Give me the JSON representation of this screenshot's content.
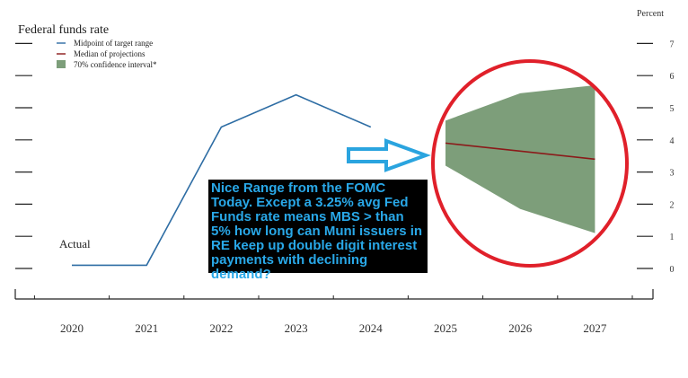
{
  "chart_data": {
    "type": "line",
    "title": "Federal funds rate",
    "ylabel": "Percent",
    "ylim": [
      0,
      7
    ],
    "y_ticks": [
      "0",
      "1",
      "2",
      "3",
      "4",
      "5",
      "6",
      "7"
    ],
    "categories": [
      "2020",
      "2021",
      "2022",
      "2023",
      "2024",
      "2025",
      "2026",
      "2027"
    ],
    "legend": {
      "placement": "top-left",
      "entries": [
        {
          "label": "Midpoint of target range",
          "color": "#2e6da4",
          "kind": "line"
        },
        {
          "label": "Median of projections",
          "color": "#8b1a1a",
          "kind": "line"
        },
        {
          "label": "70% confidence interval*",
          "color": "#7d9e7a",
          "kind": "area"
        }
      ]
    },
    "series": [
      {
        "name": "Midpoint of target range",
        "x": [
          2020,
          2021,
          2022,
          2023,
          2024
        ],
        "values": [
          0.1,
          0.1,
          4.4,
          5.4,
          4.4
        ]
      },
      {
        "name": "Median of projections",
        "x": [
          2025,
          2026,
          2027
        ],
        "values": [
          3.9,
          3.65,
          3.4
        ]
      }
    ],
    "band": {
      "name": "70% confidence interval*",
      "x": [
        2025,
        2026,
        2027
      ],
      "upper": [
        4.6,
        5.45,
        5.7
      ],
      "lower": [
        3.2,
        1.85,
        1.1
      ]
    },
    "annotation_label": "Actual"
  },
  "annotations": {
    "callout_text": "Nice Range from the FOMC Today. Except a 3.25% avg Fed Funds rate means MBS > than 5% how long can Muni issuers in RE keep up double digit interest payments with declining demand?"
  },
  "colors": {
    "actual_line": "#2e6da4",
    "median_line": "#8b1a1a",
    "band_fill": "#7d9e7a",
    "ellipse": "#e0202a",
    "arrow": "#2aa4df",
    "callout_bg": "#000000",
    "callout_text": "#29a8e8"
  }
}
